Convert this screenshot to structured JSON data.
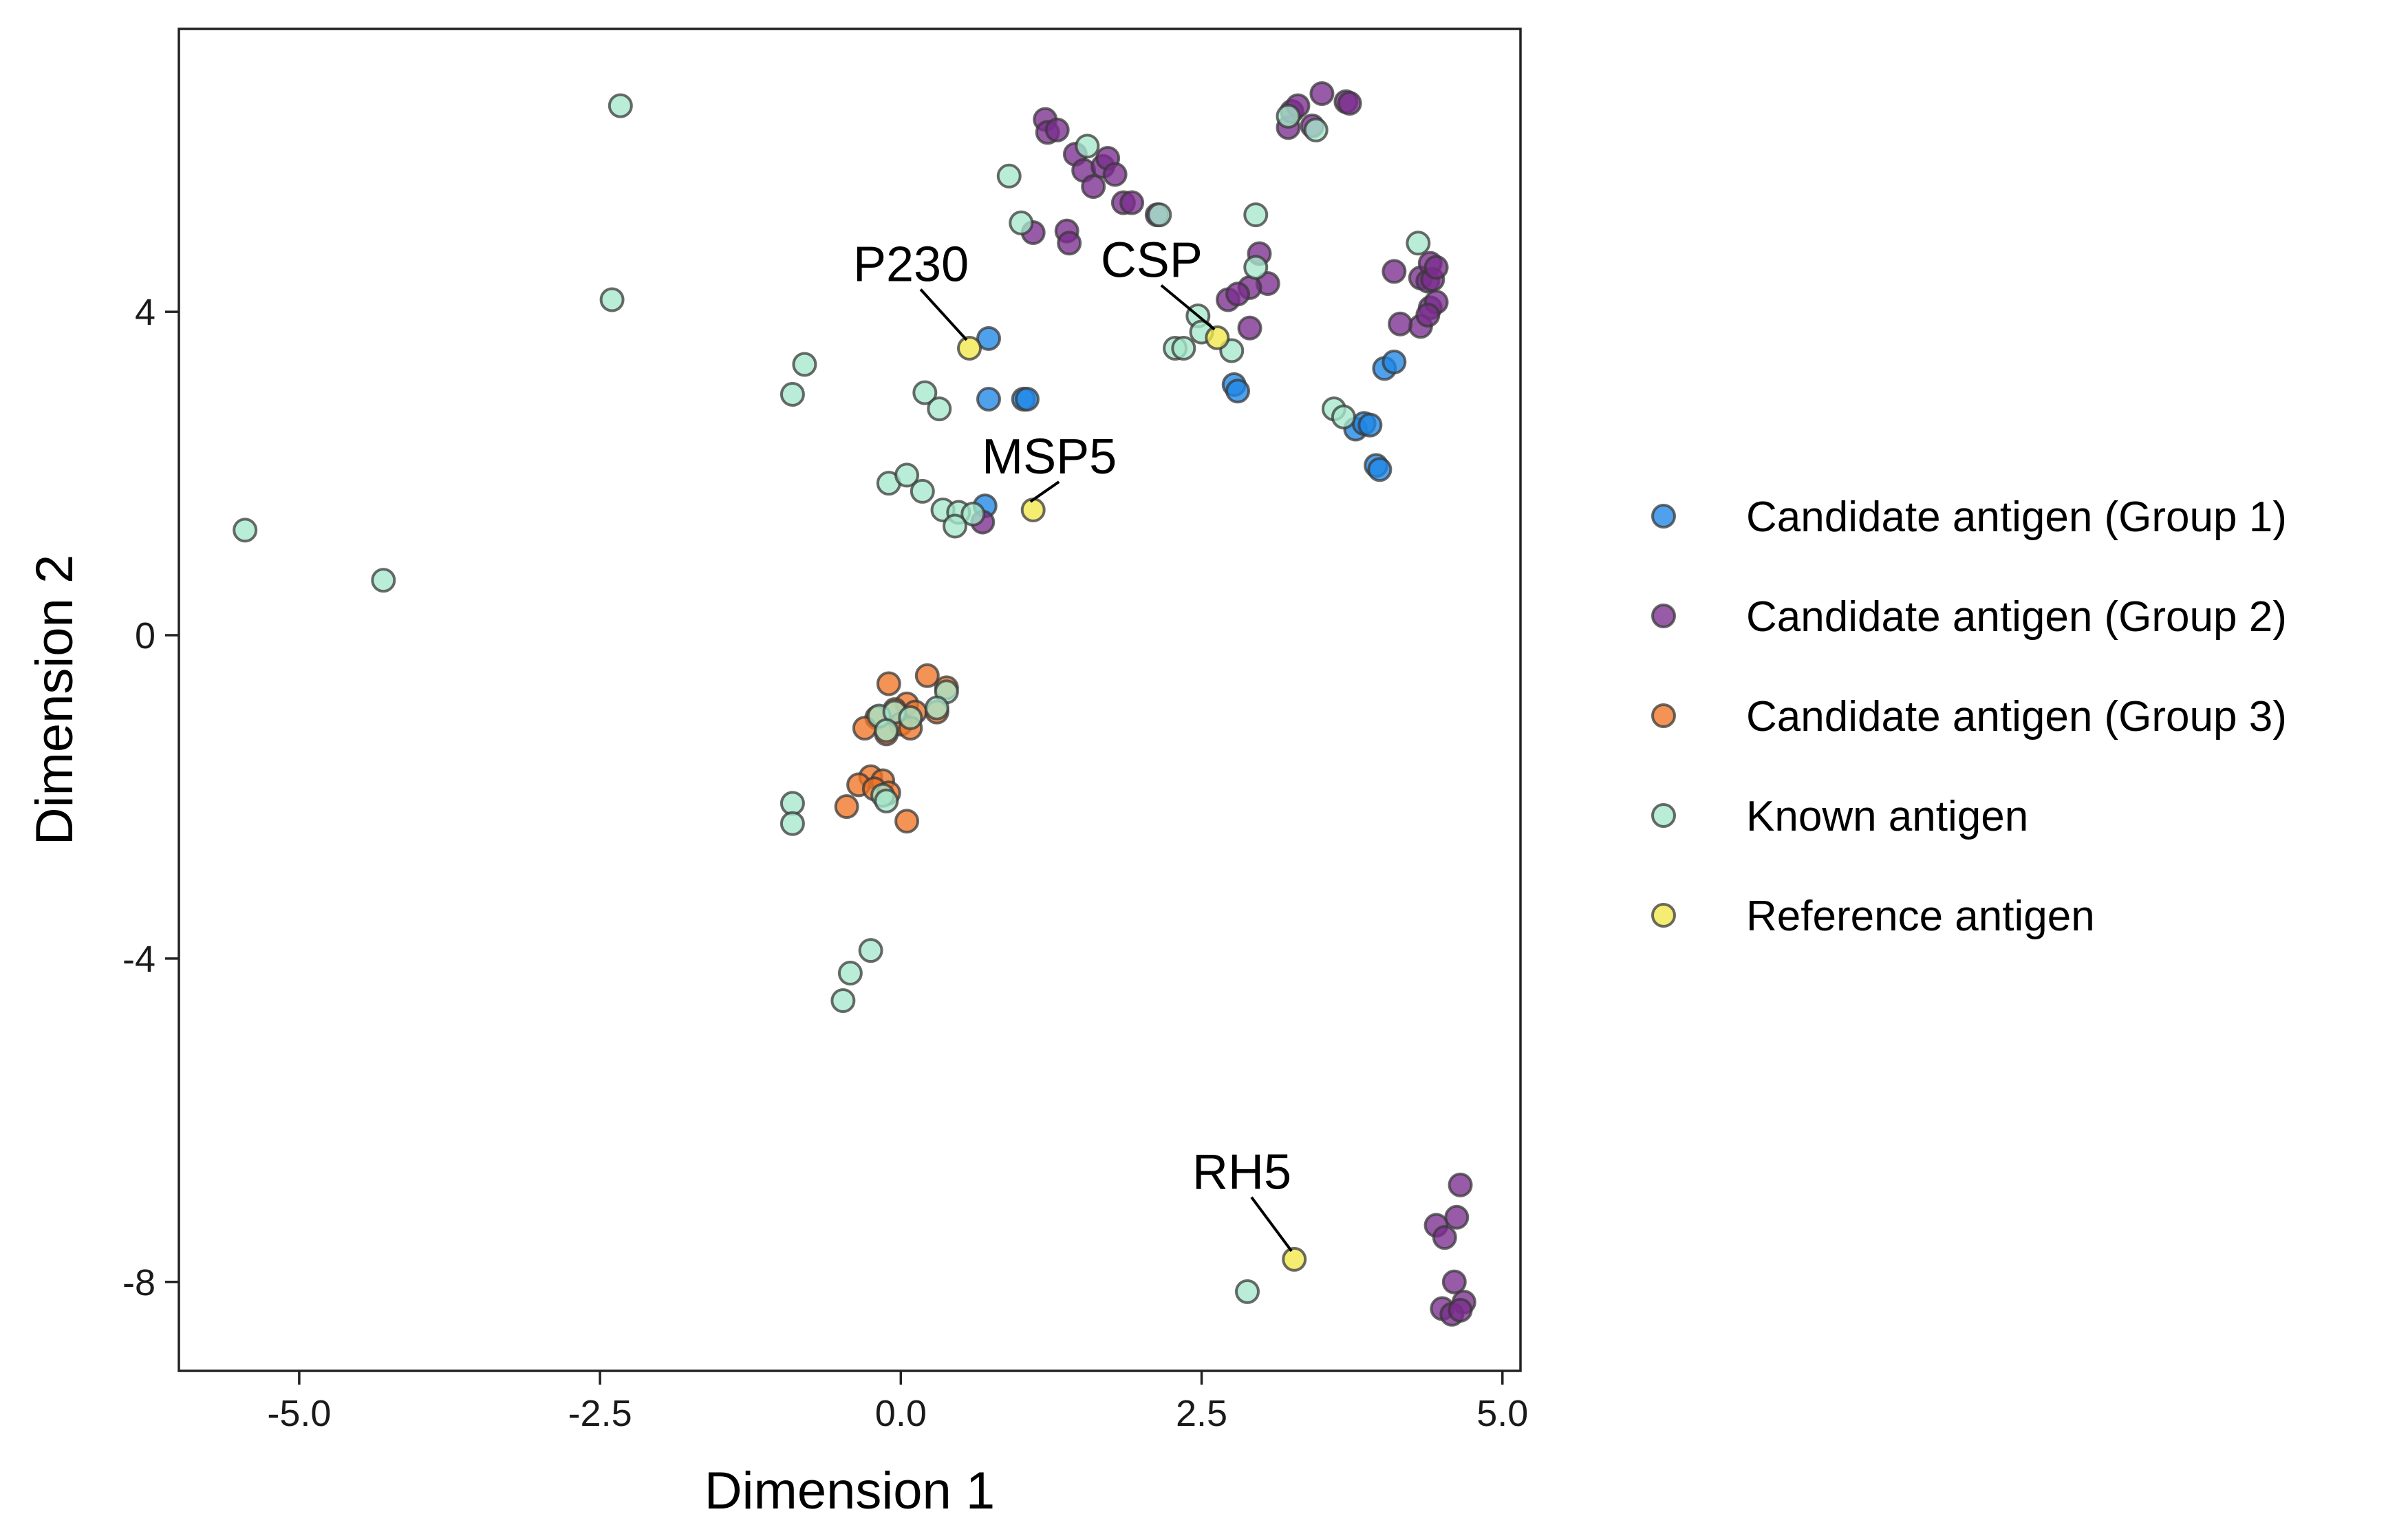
{
  "chart_data": {
    "type": "scatter",
    "xlabel": "Dimension 1",
    "ylabel": "Dimension 2",
    "xlim": [
      -6,
      5.15
    ],
    "ylim": [
      -9.1,
      7.5
    ],
    "x_ticks": [
      -5.0,
      -2.5,
      0.0,
      2.5,
      5.0
    ],
    "x_tick_labels": [
      "-5.0",
      "-2.5",
      "0.0",
      "2.5",
      "5.0"
    ],
    "y_ticks": [
      -8,
      -4,
      0,
      4
    ],
    "y_tick_labels": [
      "-8",
      "-4",
      "0",
      "4"
    ],
    "grid": false,
    "legend_position": "right",
    "series": [
      {
        "name": "Candidate antigen (Group 1)",
        "color": "#1f87e5",
        "points": [
          [
            0.73,
            3.67
          ],
          [
            0.73,
            2.92
          ],
          [
            1.02,
            2.92
          ],
          [
            1.05,
            2.92
          ],
          [
            0.7,
            1.6
          ],
          [
            2.77,
            3.1
          ],
          [
            2.8,
            3.02
          ],
          [
            4.02,
            3.3
          ],
          [
            4.1,
            3.38
          ],
          [
            3.78,
            2.55
          ],
          [
            3.85,
            2.62
          ],
          [
            3.9,
            2.6
          ],
          [
            3.95,
            2.1
          ],
          [
            3.98,
            2.05
          ]
        ]
      },
      {
        "name": "Candidate antigen (Group 2)",
        "color": "#7b2d8e",
        "points": [
          [
            1.2,
            6.38
          ],
          [
            1.22,
            6.22
          ],
          [
            1.3,
            6.25
          ],
          [
            1.45,
            5.95
          ],
          [
            1.52,
            5.75
          ],
          [
            1.6,
            5.55
          ],
          [
            1.68,
            5.8
          ],
          [
            1.72,
            5.9
          ],
          [
            1.78,
            5.7
          ],
          [
            1.85,
            5.35
          ],
          [
            1.92,
            5.35
          ],
          [
            2.13,
            5.2
          ],
          [
            1.38,
            5.0
          ],
          [
            1.4,
            4.85
          ],
          [
            1.1,
            4.98
          ],
          [
            3.22,
            6.28
          ],
          [
            3.25,
            6.48
          ],
          [
            3.3,
            6.55
          ],
          [
            3.42,
            6.3
          ],
          [
            3.5,
            6.7
          ],
          [
            3.7,
            6.6
          ],
          [
            3.73,
            6.58
          ],
          [
            2.98,
            4.72
          ],
          [
            3.05,
            4.35
          ],
          [
            2.9,
            4.3
          ],
          [
            2.72,
            4.15
          ],
          [
            2.8,
            4.22
          ],
          [
            2.9,
            3.8
          ],
          [
            0.68,
            1.4
          ],
          [
            4.1,
            4.5
          ],
          [
            4.32,
            4.42
          ],
          [
            4.38,
            4.38
          ],
          [
            4.4,
            4.6
          ],
          [
            4.42,
            4.4
          ],
          [
            4.45,
            4.55
          ],
          [
            4.4,
            4.05
          ],
          [
            4.45,
            4.12
          ],
          [
            4.32,
            3.82
          ],
          [
            4.38,
            3.96
          ],
          [
            4.15,
            3.85
          ],
          [
            4.65,
            -6.8
          ],
          [
            4.62,
            -7.2
          ],
          [
            4.45,
            -7.3
          ],
          [
            4.52,
            -7.45
          ],
          [
            4.6,
            -8.0
          ],
          [
            4.68,
            -8.25
          ],
          [
            4.5,
            -8.33
          ],
          [
            4.58,
            -8.4
          ],
          [
            4.65,
            -8.35
          ]
        ]
      },
      {
        "name": "Candidate antigen (Group 3)",
        "color": "#f07426",
        "points": [
          [
            0.22,
            -0.5
          ],
          [
            -0.1,
            -0.6
          ],
          [
            0.38,
            -0.65
          ],
          [
            0.05,
            -0.85
          ],
          [
            -0.05,
            -0.92
          ],
          [
            0.12,
            -0.95
          ],
          [
            0.3,
            -0.95
          ],
          [
            -0.2,
            -1.02
          ],
          [
            0.0,
            -1.1
          ],
          [
            -0.3,
            -1.15
          ],
          [
            0.08,
            -1.15
          ],
          [
            -0.12,
            -1.22
          ],
          [
            -0.25,
            -1.75
          ],
          [
            -0.15,
            -1.8
          ],
          [
            -0.35,
            -1.85
          ],
          [
            -0.22,
            -1.9
          ],
          [
            -0.1,
            -1.95
          ],
          [
            -0.45,
            -2.12
          ],
          [
            0.05,
            -2.3
          ]
        ]
      },
      {
        "name": "Known antigen",
        "color": "#a6e8cc",
        "points": [
          [
            -2.33,
            6.55
          ],
          [
            -2.4,
            4.15
          ],
          [
            -5.45,
            1.3
          ],
          [
            -4.3,
            0.68
          ],
          [
            -0.8,
            3.35
          ],
          [
            -0.9,
            2.98
          ],
          [
            0.2,
            3.0
          ],
          [
            0.32,
            2.8
          ],
          [
            -0.1,
            1.88
          ],
          [
            0.05,
            1.98
          ],
          [
            0.18,
            1.78
          ],
          [
            0.35,
            1.55
          ],
          [
            0.48,
            1.52
          ],
          [
            0.6,
            1.5
          ],
          [
            0.45,
            1.35
          ],
          [
            0.9,
            5.68
          ],
          [
            1.0,
            5.1
          ],
          [
            1.55,
            6.05
          ],
          [
            2.15,
            5.2
          ],
          [
            2.95,
            5.2
          ],
          [
            2.95,
            4.55
          ],
          [
            2.47,
            3.95
          ],
          [
            2.5,
            3.75
          ],
          [
            2.28,
            3.55
          ],
          [
            2.35,
            3.55
          ],
          [
            2.75,
            3.52
          ],
          [
            3.22,
            6.42
          ],
          [
            3.45,
            6.25
          ],
          [
            4.3,
            4.85
          ],
          [
            3.6,
            2.8
          ],
          [
            3.68,
            2.7
          ],
          [
            -0.18,
            -1.0
          ],
          [
            -0.05,
            -0.95
          ],
          [
            0.08,
            -1.02
          ],
          [
            -0.12,
            -1.18
          ],
          [
            0.38,
            -0.7
          ],
          [
            0.3,
            -0.9
          ],
          [
            -0.9,
            -2.08
          ],
          [
            -0.9,
            -2.33
          ],
          [
            -0.15,
            -1.98
          ],
          [
            -0.12,
            -2.05
          ],
          [
            -0.25,
            -3.9
          ],
          [
            -0.42,
            -4.18
          ],
          [
            -0.48,
            -4.52
          ],
          [
            2.88,
            -8.12
          ]
        ]
      },
      {
        "name": "Reference antigen",
        "color": "#f2e84a",
        "points": [
          [
            0.57,
            3.55
          ],
          [
            2.63,
            3.68
          ],
          [
            1.1,
            1.55
          ],
          [
            3.27,
            -7.72
          ]
        ]
      }
    ],
    "annotations": [
      {
        "text": "P230",
        "x": 0.57,
        "y": 3.55,
        "label_x": 0.05,
        "label_y": 4.38
      },
      {
        "text": "CSP",
        "x": 2.63,
        "y": 3.68,
        "label_x": 2.05,
        "label_y": 4.43
      },
      {
        "text": "MSP5",
        "x": 1.1,
        "y": 1.55,
        "label_x": 1.2,
        "label_y": 2.0
      },
      {
        "text": "RH5",
        "x": 3.27,
        "y": -7.72,
        "label_x": 2.8,
        "label_y": -6.85
      }
    ]
  }
}
